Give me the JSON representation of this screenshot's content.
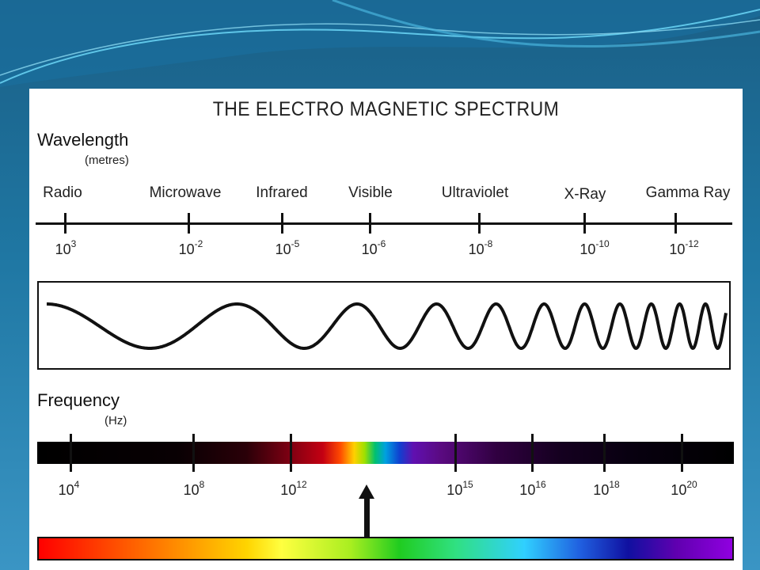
{
  "diagram": {
    "title": "THE ELECTRO MAGNETIC SPECTRUM",
    "wavelength": {
      "label": "Wavelength",
      "unit": "(metres)",
      "bands": [
        "Radio",
        "Microwave",
        "Infrared",
        "Visible",
        "Ultraviolet",
        "X-Ray",
        "Gamma Ray"
      ],
      "ticks": [
        {
          "base": "10",
          "exp": "3"
        },
        {
          "base": "10",
          "exp": "-2"
        },
        {
          "base": "10",
          "exp": "-5"
        },
        {
          "base": "10",
          "exp": "-6"
        },
        {
          "base": "10",
          "exp": "-8"
        },
        {
          "base": "10",
          "exp": "-10"
        },
        {
          "base": "10",
          "exp": "-12"
        }
      ]
    },
    "frequency": {
      "label": "Frequency",
      "unit": "(Hz)",
      "ticks": [
        {
          "base": "10",
          "exp": "4"
        },
        {
          "base": "10",
          "exp": "8"
        },
        {
          "base": "10",
          "exp": "12"
        },
        {
          "base": "10",
          "exp": "15"
        },
        {
          "base": "10",
          "exp": "16"
        },
        {
          "base": "10",
          "exp": "18"
        },
        {
          "base": "10",
          "exp": "20"
        }
      ]
    },
    "colors": {
      "background": "#1f77a3",
      "panel": "#ffffff",
      "ink": "#111111"
    }
  }
}
